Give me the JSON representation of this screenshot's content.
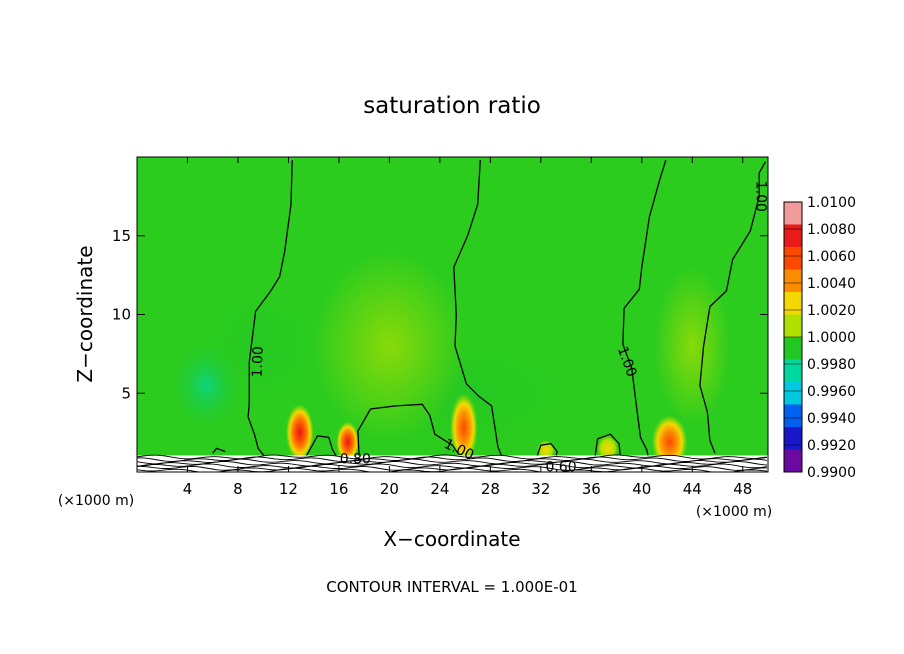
{
  "chart_data": {
    "type": "heatmap",
    "title": "saturation ratio",
    "xlabel": "X−coordinate",
    "ylabel": "Z−coordinate",
    "x_unit": "(×1000 m)",
    "x_range": [
      0,
      50
    ],
    "y_range": [
      0,
      20
    ],
    "x_ticks": [
      4,
      8,
      12,
      16,
      20,
      24,
      28,
      32,
      36,
      40,
      44,
      48
    ],
    "y_ticks": [
      5,
      10,
      15
    ],
    "colorbar": {
      "levels": [
        "1.0100",
        "1.0080",
        "1.0060",
        "1.0040",
        "1.0020",
        "1.0000",
        "0.9980",
        "0.9960",
        "0.9940",
        "0.9920",
        "0.9900"
      ],
      "colors": [
        "#f09a9a",
        "#e81a1a",
        "#fb4a00",
        "#fb8c00",
        "#f5d800",
        "#b0e000",
        "#22c822",
        "#00d8a0",
        "#00c8e0",
        "#0060f0",
        "#1818c8",
        "#6a0aa0"
      ]
    },
    "background_level": "1.0000",
    "contour_labels": [
      {
        "text": "1.00",
        "x": 9.6,
        "y": 7.0,
        "angle": -88
      },
      {
        "text": "1.00",
        "x": 25.5,
        "y": 1.4,
        "angle": 25
      },
      {
        "text": "1.00",
        "x": 38.8,
        "y": 7.0,
        "angle": 70
      },
      {
        "text": "1.00",
        "x": 49.4,
        "y": 17.5,
        "angle": 90
      },
      {
        "text": "0.80",
        "x": 17.3,
        "y": 0.8,
        "angle": 0
      },
      {
        "text": "0.60",
        "x": 33.6,
        "y": 0.3,
        "angle": 0
      }
    ],
    "contours": [
      [
        [
          12.3,
          19.8
        ],
        [
          12.2,
          17
        ],
        [
          11.7,
          14
        ],
        [
          11.3,
          12.4
        ],
        [
          10.6,
          11.5
        ],
        [
          9.4,
          10.2
        ],
        [
          8.9,
          7
        ],
        [
          8.9,
          4.4
        ],
        [
          8.8,
          3.5
        ],
        [
          9.3,
          2.4
        ],
        [
          9.6,
          1.5
        ],
        [
          10.1,
          1.0
        ]
      ],
      [
        [
          27.2,
          19.8
        ],
        [
          27.0,
          17.0
        ],
        [
          26.2,
          15.0
        ],
        [
          25.1,
          13.0
        ],
        [
          25.3,
          10.0
        ],
        [
          25.2,
          8.0
        ],
        [
          26.1,
          5.6
        ],
        [
          27.1,
          4.8
        ],
        [
          28.1,
          4.2
        ],
        [
          28.6,
          1.6
        ],
        [
          28.9,
          1.0
        ]
      ],
      [
        [
          17.6,
          1.0
        ],
        [
          17.5,
          2.6
        ],
        [
          18.5,
          4.0
        ],
        [
          20.5,
          4.2
        ],
        [
          22.6,
          4.3
        ],
        [
          23.2,
          3.6
        ],
        [
          23.6,
          2.4
        ],
        [
          25.0,
          1.7
        ],
        [
          25.5,
          1.1
        ]
      ],
      [
        [
          41.9,
          19.8
        ],
        [
          41.4,
          18.5
        ],
        [
          40.6,
          16.2
        ],
        [
          40.0,
          13.0
        ],
        [
          39.8,
          11.6
        ],
        [
          38.6,
          10.4
        ],
        [
          38.5,
          8.1
        ],
        [
          39.2,
          6.6
        ],
        [
          39.6,
          4.0
        ],
        [
          39.9,
          2.2
        ],
        [
          40.4,
          1.4
        ],
        [
          40.5,
          1.0
        ]
      ],
      [
        [
          49.8,
          19.7
        ],
        [
          49.3,
          19.0
        ],
        [
          49.3,
          17.5
        ],
        [
          48.6,
          15.3
        ],
        [
          47.2,
          13.5
        ],
        [
          46.7,
          11.5
        ],
        [
          45.4,
          10.5
        ],
        [
          44.9,
          8.0
        ],
        [
          44.6,
          5.5
        ],
        [
          45.2,
          3.8
        ],
        [
          45.4,
          2.0
        ],
        [
          45.8,
          1.2
        ]
      ],
      [
        [
          6.0,
          1.2
        ],
        [
          6.3,
          1.5
        ],
        [
          7.0,
          1.3
        ]
      ],
      [
        [
          31.7,
          1.0
        ],
        [
          32.0,
          1.7
        ],
        [
          32.8,
          1.8
        ],
        [
          33.3,
          1.3
        ],
        [
          33.2,
          1.0
        ]
      ],
      [
        [
          36.3,
          1.0
        ],
        [
          36.5,
          2.1
        ],
        [
          37.5,
          2.4
        ],
        [
          38.2,
          1.8
        ],
        [
          38.3,
          1.0
        ]
      ],
      [
        [
          13.4,
          1.0
        ],
        [
          14.3,
          2.3
        ],
        [
          15.2,
          2.2
        ],
        [
          15.5,
          1.4
        ],
        [
          15.8,
          1.0
        ]
      ]
    ],
    "hotspots": [
      {
        "x": 12.9,
        "y": 2.5,
        "rx": 1.1,
        "ry": 1.8,
        "peak": "1.0080"
      },
      {
        "x": 16.7,
        "y": 1.9,
        "rx": 0.9,
        "ry": 1.3,
        "peak": "1.0080"
      },
      {
        "x": 25.9,
        "y": 2.8,
        "rx": 1.1,
        "ry": 2.2,
        "peak": "1.0060"
      },
      {
        "x": 42.2,
        "y": 1.9,
        "rx": 1.4,
        "ry": 1.7,
        "peak": "1.0060"
      },
      {
        "x": 37.3,
        "y": 1.5,
        "rx": 0.8,
        "ry": 0.8,
        "peak": "1.0020"
      },
      {
        "x": 32.4,
        "y": 1.4,
        "rx": 0.7,
        "ry": 0.6,
        "peak": "1.0020"
      }
    ],
    "regions_low": [
      {
        "x": 5.5,
        "y": 5.5,
        "rx": 3.0,
        "ry": 3.0,
        "level": "0.9960"
      },
      {
        "x": 27.0,
        "y": 5.0,
        "rx": 8.0,
        "ry": 3.5,
        "level": "0.9980"
      },
      {
        "x": 10.0,
        "y": 8.0,
        "rx": 5.0,
        "ry": 4.0,
        "level": "0.9980"
      }
    ],
    "regions_high": [
      {
        "x": 20.0,
        "y": 8.0,
        "rx": 6.0,
        "ry": 6.0,
        "level": "1.0020"
      },
      {
        "x": 44.0,
        "y": 8.0,
        "rx": 3.0,
        "ry": 5.0,
        "level": "1.0020"
      }
    ],
    "footer": "CONTOUR INTERVAL = 1.000E-01"
  }
}
